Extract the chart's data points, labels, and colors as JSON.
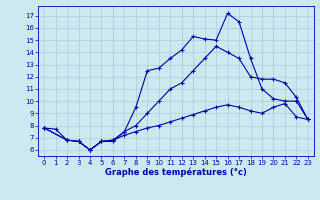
{
  "xlabel": "Graphe des températures (°c)",
  "bg_color": "#cce8f0",
  "line_color": "#0000aa",
  "grid_color": "#aaccdd",
  "xlim": [
    -0.5,
    23.5
  ],
  "ylim": [
    5.5,
    17.8
  ],
  "xticks": [
    0,
    1,
    2,
    3,
    4,
    5,
    6,
    7,
    8,
    9,
    10,
    11,
    12,
    13,
    14,
    15,
    16,
    17,
    18,
    19,
    20,
    21,
    22,
    23
  ],
  "yticks": [
    6,
    7,
    8,
    9,
    10,
    11,
    12,
    13,
    14,
    15,
    16,
    17
  ],
  "line1_x": [
    0,
    1,
    2,
    3,
    4,
    5,
    6,
    7,
    8,
    9,
    10,
    11,
    12,
    13,
    14,
    15,
    16,
    17,
    18,
    19,
    20,
    21,
    22,
    23
  ],
  "line1_y": [
    7.8,
    7.7,
    6.8,
    6.7,
    6.0,
    6.7,
    6.7,
    7.5,
    9.5,
    12.5,
    12.7,
    13.5,
    14.2,
    15.3,
    15.1,
    15.0,
    17.2,
    16.5,
    13.5,
    11.0,
    10.2,
    10.0,
    10.0,
    8.5
  ],
  "line2_x": [
    0,
    2,
    3,
    4,
    5,
    6,
    7,
    8,
    9,
    10,
    11,
    12,
    13,
    14,
    15,
    16,
    17,
    18,
    19,
    20,
    21,
    22,
    23
  ],
  "line2_y": [
    7.8,
    6.8,
    6.7,
    6.0,
    6.7,
    6.8,
    7.5,
    8.0,
    9.0,
    10.0,
    11.0,
    11.5,
    12.5,
    13.5,
    14.5,
    14.0,
    13.5,
    12.0,
    11.8,
    11.8,
    11.5,
    10.3,
    8.5
  ],
  "line3_x": [
    0,
    2,
    3,
    4,
    5,
    6,
    7,
    8,
    9,
    10,
    11,
    12,
    13,
    14,
    15,
    16,
    17,
    18,
    19,
    20,
    21,
    22,
    23
  ],
  "line3_y": [
    7.8,
    6.8,
    6.7,
    6.0,
    6.7,
    6.8,
    7.2,
    7.5,
    7.8,
    8.0,
    8.3,
    8.6,
    8.9,
    9.2,
    9.5,
    9.7,
    9.5,
    9.2,
    9.0,
    9.5,
    9.8,
    8.7,
    8.5
  ]
}
